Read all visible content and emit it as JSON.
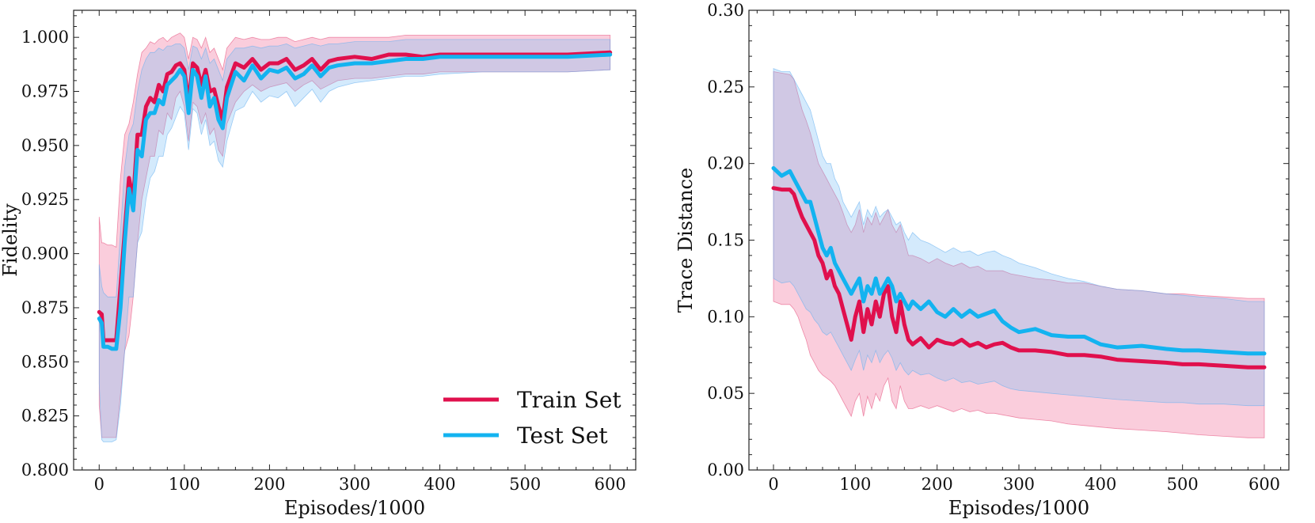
{
  "chart_data": [
    {
      "type": "line",
      "id": "fidelity",
      "title": "",
      "xlabel": "Episodes/1000",
      "ylabel": "Fidelity",
      "xlim": [
        -30,
        630
      ],
      "ylim": [
        0.8,
        1.0125
      ],
      "xticks": [
        0,
        100,
        200,
        300,
        400,
        500,
        600
      ],
      "xtick_labels": [
        "0",
        "100",
        "200",
        "300",
        "400",
        "500",
        "600"
      ],
      "yticks": [
        0.8,
        0.825,
        0.85,
        0.875,
        0.9,
        0.925,
        0.95,
        0.975,
        1.0
      ],
      "ytick_labels": [
        "0.800",
        "0.825",
        "0.850",
        "0.875",
        "0.900",
        "0.925",
        "0.950",
        "0.975",
        "1.000"
      ],
      "legend": "lower-right",
      "series": [
        {
          "name": "Train Set",
          "color": "#e0104d",
          "x": [
            0,
            3,
            5,
            10,
            15,
            20,
            25,
            30,
            35,
            40,
            45,
            50,
            55,
            60,
            65,
            70,
            75,
            80,
            85,
            90,
            95,
            100,
            105,
            110,
            115,
            120,
            125,
            130,
            135,
            140,
            145,
            150,
            160,
            170,
            180,
            190,
            200,
            210,
            220,
            230,
            240,
            250,
            260,
            270,
            280,
            300,
            320,
            340,
            360,
            380,
            400,
            450,
            500,
            550,
            600
          ],
          "y": [
            0.873,
            0.872,
            0.86,
            0.86,
            0.86,
            0.86,
            0.885,
            0.91,
            0.935,
            0.925,
            0.955,
            0.955,
            0.968,
            0.972,
            0.97,
            0.978,
            0.975,
            0.983,
            0.984,
            0.987,
            0.988,
            0.985,
            0.97,
            0.988,
            0.986,
            0.978,
            0.985,
            0.975,
            0.976,
            0.968,
            0.962,
            0.977,
            0.988,
            0.986,
            0.99,
            0.985,
            0.988,
            0.988,
            0.99,
            0.985,
            0.987,
            0.99,
            0.985,
            0.989,
            0.99,
            0.991,
            0.99,
            0.992,
            0.992,
            0.991,
            0.992,
            0.992,
            0.992,
            0.992,
            0.993
          ],
          "band_upper": [
            0.917,
            0.905,
            0.905,
            0.904,
            0.904,
            0.903,
            0.935,
            0.955,
            0.96,
            0.97,
            0.983,
            0.993,
            0.995,
            0.998,
            0.997,
            0.999,
            1.0,
            0.998,
            1.0,
            1.001,
            1.002,
            1.0,
            0.99,
            1.0,
            0.999,
            0.995,
            1.0,
            0.993,
            0.995,
            0.99,
            0.985,
            0.995,
            1.0,
            0.999,
            1.0,
            0.999,
            0.999,
            1.0,
            1.0,
            0.998,
            0.999,
            1.0,
            0.999,
            1.0,
            1.0,
            1.0,
            1.0,
            1.0,
            1.001,
            1.001,
            1.001,
            1.001,
            1.001,
            1.001,
            1.001
          ],
          "band_lower": [
            0.83,
            0.815,
            0.815,
            0.815,
            0.815,
            0.815,
            0.835,
            0.855,
            0.862,
            0.88,
            0.905,
            0.925,
            0.935,
            0.945,
            0.945,
            0.957,
            0.955,
            0.965,
            0.962,
            0.972,
            0.975,
            0.968,
            0.952,
            0.97,
            0.968,
            0.96,
            0.965,
            0.955,
            0.958,
            0.948,
            0.945,
            0.96,
            0.97,
            0.975,
            0.978,
            0.975,
            0.977,
            0.978,
            0.979,
            0.975,
            0.978,
            0.98,
            0.976,
            0.978,
            0.98,
            0.981,
            0.981,
            0.982,
            0.983,
            0.983,
            0.984,
            0.984,
            0.984,
            0.984,
            0.985
          ]
        },
        {
          "name": "Test Set",
          "color": "#13b3f0",
          "x": [
            0,
            3,
            5,
            10,
            15,
            20,
            25,
            30,
            35,
            40,
            45,
            50,
            55,
            60,
            65,
            70,
            75,
            80,
            85,
            90,
            95,
            100,
            105,
            110,
            115,
            120,
            125,
            130,
            135,
            140,
            145,
            150,
            160,
            170,
            180,
            190,
            200,
            210,
            220,
            230,
            240,
            250,
            260,
            270,
            280,
            300,
            320,
            340,
            360,
            380,
            400,
            450,
            500,
            550,
            600
          ],
          "y": [
            0.87,
            0.868,
            0.857,
            0.857,
            0.856,
            0.856,
            0.875,
            0.905,
            0.93,
            0.92,
            0.948,
            0.945,
            0.962,
            0.965,
            0.965,
            0.971,
            0.969,
            0.978,
            0.98,
            0.982,
            0.985,
            0.982,
            0.965,
            0.985,
            0.982,
            0.972,
            0.982,
            0.968,
            0.972,
            0.962,
            0.958,
            0.972,
            0.984,
            0.98,
            0.987,
            0.981,
            0.985,
            0.984,
            0.986,
            0.981,
            0.983,
            0.987,
            0.982,
            0.986,
            0.987,
            0.988,
            0.988,
            0.989,
            0.99,
            0.99,
            0.991,
            0.991,
            0.991,
            0.991,
            0.992
          ],
          "band_upper": [
            0.895,
            0.885,
            0.882,
            0.88,
            0.88,
            0.88,
            0.91,
            0.94,
            0.955,
            0.96,
            0.975,
            0.985,
            0.99,
            0.993,
            0.993,
            0.995,
            0.994,
            0.996,
            0.996,
            0.997,
            0.997,
            0.995,
            0.985,
            0.996,
            0.995,
            0.99,
            0.995,
            0.988,
            0.99,
            0.985,
            0.98,
            0.99,
            0.995,
            0.995,
            0.996,
            0.995,
            0.996,
            0.996,
            0.997,
            0.995,
            0.996,
            0.997,
            0.996,
            0.997,
            0.997,
            0.998,
            0.998,
            0.998,
            0.999,
            0.999,
            0.999,
            0.999,
            0.999,
            0.999,
            0.999
          ],
          "band_lower": [
            0.84,
            0.814,
            0.813,
            0.813,
            0.813,
            0.814,
            0.83,
            0.855,
            0.88,
            0.88,
            0.905,
            0.91,
            0.925,
            0.935,
            0.938,
            0.945,
            0.945,
            0.955,
            0.958,
            0.963,
            0.968,
            0.965,
            0.948,
            0.967,
            0.965,
            0.955,
            0.962,
            0.95,
            0.952,
            0.943,
            0.94,
            0.952,
            0.966,
            0.968,
            0.975,
            0.97,
            0.973,
            0.972,
            0.975,
            0.968,
            0.972,
            0.976,
            0.97,
            0.975,
            0.977,
            0.979,
            0.98,
            0.981,
            0.982,
            0.982,
            0.983,
            0.984,
            0.984,
            0.984,
            0.985
          ]
        }
      ]
    },
    {
      "type": "line",
      "id": "trace-distance",
      "title": "",
      "xlabel": "Episodes/1000",
      "ylabel": "Trace Distance",
      "xlim": [
        -30,
        630
      ],
      "ylim": [
        0.0,
        0.3
      ],
      "xticks": [
        0,
        100,
        200,
        300,
        400,
        500,
        600
      ],
      "xtick_labels": [
        "0",
        "100",
        "200",
        "300",
        "400",
        "500",
        "600"
      ],
      "yticks": [
        0.0,
        0.05,
        0.1,
        0.15,
        0.2,
        0.25,
        0.3
      ],
      "ytick_labels": [
        "0.00",
        "0.05",
        "0.10",
        "0.15",
        "0.20",
        "0.25",
        "0.30"
      ],
      "legend": "none",
      "series": [
        {
          "name": "Train Set",
          "color": "#e0104d",
          "x": [
            0,
            10,
            20,
            25,
            30,
            35,
            40,
            45,
            50,
            55,
            60,
            65,
            70,
            75,
            80,
            85,
            90,
            95,
            100,
            105,
            110,
            115,
            120,
            125,
            130,
            135,
            140,
            145,
            150,
            155,
            160,
            165,
            170,
            180,
            190,
            200,
            210,
            220,
            230,
            240,
            250,
            260,
            270,
            280,
            290,
            300,
            320,
            340,
            360,
            380,
            400,
            420,
            450,
            480,
            500,
            520,
            550,
            580,
            600
          ],
          "y": [
            0.184,
            0.183,
            0.183,
            0.18,
            0.172,
            0.165,
            0.16,
            0.155,
            0.15,
            0.14,
            0.135,
            0.125,
            0.13,
            0.12,
            0.115,
            0.105,
            0.095,
            0.085,
            0.1,
            0.11,
            0.09,
            0.105,
            0.095,
            0.11,
            0.1,
            0.115,
            0.12,
            0.1,
            0.09,
            0.11,
            0.095,
            0.085,
            0.082,
            0.086,
            0.08,
            0.085,
            0.083,
            0.082,
            0.085,
            0.081,
            0.083,
            0.08,
            0.082,
            0.083,
            0.08,
            0.078,
            0.078,
            0.077,
            0.075,
            0.075,
            0.074,
            0.072,
            0.071,
            0.07,
            0.069,
            0.069,
            0.068,
            0.067,
            0.067
          ],
          "band_upper": [
            0.26,
            0.259,
            0.258,
            0.255,
            0.245,
            0.235,
            0.228,
            0.22,
            0.21,
            0.2,
            0.195,
            0.19,
            0.185,
            0.18,
            0.175,
            0.168,
            0.16,
            0.155,
            0.16,
            0.17,
            0.155,
            0.165,
            0.16,
            0.168,
            0.16,
            0.165,
            0.17,
            0.16,
            0.155,
            0.16,
            0.15,
            0.14,
            0.14,
            0.138,
            0.135,
            0.138,
            0.135,
            0.133,
            0.135,
            0.132,
            0.133,
            0.13,
            0.13,
            0.13,
            0.128,
            0.127,
            0.125,
            0.124,
            0.122,
            0.122,
            0.12,
            0.118,
            0.117,
            0.115,
            0.115,
            0.114,
            0.113,
            0.112,
            0.112
          ],
          "band_lower": [
            0.11,
            0.108,
            0.108,
            0.105,
            0.1,
            0.092,
            0.085,
            0.075,
            0.07,
            0.065,
            0.062,
            0.06,
            0.058,
            0.055,
            0.05,
            0.045,
            0.04,
            0.035,
            0.045,
            0.05,
            0.035,
            0.048,
            0.04,
            0.05,
            0.045,
            0.055,
            0.06,
            0.045,
            0.04,
            0.055,
            0.045,
            0.04,
            0.04,
            0.042,
            0.04,
            0.042,
            0.04,
            0.038,
            0.04,
            0.038,
            0.039,
            0.037,
            0.037,
            0.036,
            0.035,
            0.034,
            0.033,
            0.032,
            0.03,
            0.029,
            0.028,
            0.027,
            0.026,
            0.025,
            0.024,
            0.023,
            0.022,
            0.021,
            0.021
          ]
        },
        {
          "name": "Test Set",
          "color": "#13b3f0",
          "x": [
            0,
            10,
            20,
            25,
            30,
            35,
            40,
            45,
            50,
            55,
            60,
            65,
            70,
            75,
            80,
            85,
            90,
            95,
            100,
            105,
            110,
            115,
            120,
            125,
            130,
            135,
            140,
            145,
            150,
            155,
            160,
            165,
            170,
            180,
            190,
            200,
            210,
            220,
            230,
            240,
            250,
            260,
            270,
            280,
            290,
            300,
            320,
            340,
            360,
            380,
            400,
            420,
            450,
            480,
            500,
            520,
            550,
            580,
            600
          ],
          "y": [
            0.197,
            0.192,
            0.195,
            0.19,
            0.185,
            0.18,
            0.175,
            0.175,
            0.165,
            0.155,
            0.145,
            0.14,
            0.145,
            0.135,
            0.13,
            0.125,
            0.12,
            0.115,
            0.12,
            0.125,
            0.11,
            0.12,
            0.115,
            0.125,
            0.115,
            0.12,
            0.125,
            0.12,
            0.11,
            0.115,
            0.11,
            0.105,
            0.11,
            0.105,
            0.11,
            0.103,
            0.1,
            0.105,
            0.1,
            0.104,
            0.1,
            0.102,
            0.104,
            0.097,
            0.093,
            0.09,
            0.092,
            0.088,
            0.087,
            0.087,
            0.082,
            0.08,
            0.081,
            0.079,
            0.078,
            0.078,
            0.077,
            0.076,
            0.076
          ],
          "band_upper": [
            0.262,
            0.26,
            0.26,
            0.255,
            0.25,
            0.245,
            0.24,
            0.235,
            0.225,
            0.215,
            0.205,
            0.2,
            0.2,
            0.19,
            0.185,
            0.175,
            0.17,
            0.165,
            0.17,
            0.175,
            0.16,
            0.17,
            0.165,
            0.172,
            0.165,
            0.168,
            0.17,
            0.165,
            0.16,
            0.162,
            0.155,
            0.15,
            0.155,
            0.15,
            0.148,
            0.145,
            0.142,
            0.145,
            0.142,
            0.143,
            0.14,
            0.142,
            0.143,
            0.14,
            0.138,
            0.135,
            0.132,
            0.128,
            0.125,
            0.123,
            0.12,
            0.118,
            0.117,
            0.115,
            0.114,
            0.113,
            0.112,
            0.11,
            0.11
          ],
          "band_lower": [
            0.125,
            0.122,
            0.123,
            0.12,
            0.115,
            0.11,
            0.105,
            0.103,
            0.098,
            0.095,
            0.09,
            0.088,
            0.09,
            0.085,
            0.08,
            0.075,
            0.07,
            0.065,
            0.072,
            0.078,
            0.065,
            0.075,
            0.07,
            0.078,
            0.07,
            0.075,
            0.078,
            0.073,
            0.065,
            0.07,
            0.065,
            0.062,
            0.065,
            0.062,
            0.063,
            0.06,
            0.058,
            0.06,
            0.057,
            0.058,
            0.056,
            0.057,
            0.058,
            0.055,
            0.053,
            0.052,
            0.051,
            0.05,
            0.049,
            0.048,
            0.047,
            0.046,
            0.045,
            0.044,
            0.044,
            0.043,
            0.043,
            0.042,
            0.042
          ]
        }
      ]
    }
  ]
}
